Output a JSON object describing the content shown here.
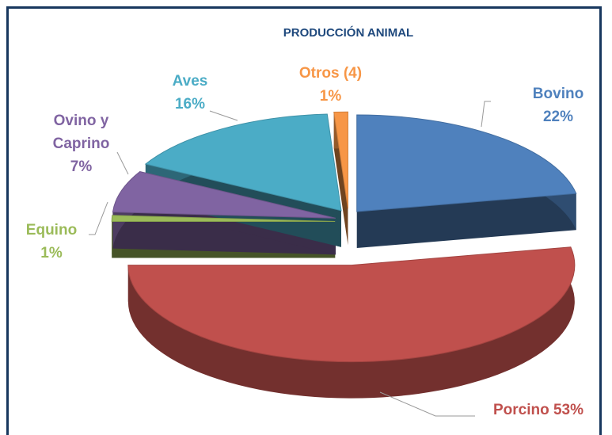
{
  "chart_data": {
    "type": "pie",
    "title": "PRODUCCIÓN ANIMAL",
    "categories": [
      "Bovino",
      "Porcino",
      "Equino",
      "Ovino y Caprino",
      "Aves",
      "Otros (4)"
    ],
    "values": [
      22,
      53,
      1,
      7,
      16,
      1
    ],
    "value_labels": [
      "22%",
      "53%",
      "1%",
      "7%",
      "16%",
      "1%"
    ],
    "colors": [
      "#4f81bd",
      "#c0504d",
      "#9bbb59",
      "#8064a2",
      "#4bacc6",
      "#f79646"
    ],
    "three_d": true,
    "exploded": true
  }
}
